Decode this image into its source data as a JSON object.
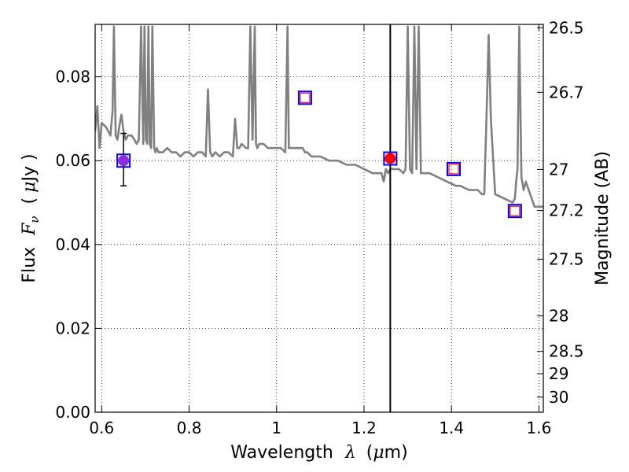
{
  "chart_data": {
    "type": "scatter",
    "xlabel": {
      "pre": "Wavelength",
      "symbol": "λ",
      "unit_open": "(",
      "unit_mu": "μ",
      "unit_rest": "m)"
    },
    "ylabel": {
      "pre": "Flux",
      "symbol": "F",
      "sub": "ν",
      "unit_open": "(",
      "unit_mu": "μ",
      "unit_rest": "Jy )"
    },
    "y2label": "Magnitude (AB)",
    "xlim": [
      0.585,
      1.61
    ],
    "ylim": [
      0.0,
      0.0925
    ],
    "xticks": [
      0.6,
      0.8,
      1.0,
      1.2,
      1.4,
      1.6
    ],
    "xtick_labels": [
      "0.6",
      "0.8",
      "1",
      "1.2",
      "1.4",
      "1.6"
    ],
    "yticks": [
      0.0,
      0.02,
      0.04,
      0.06,
      0.08
    ],
    "ytick_labels": [
      "0.00",
      "0.02",
      "0.04",
      "0.06",
      "0.08"
    ],
    "y2ticks": [
      {
        "label": "26.5",
        "flux": 0.0917
      },
      {
        "label": "26.7",
        "flux": 0.0763
      },
      {
        "label": "27",
        "flux": 0.0579
      },
      {
        "label": "27.2",
        "flux": 0.0481
      },
      {
        "label": "27.5",
        "flux": 0.0365
      },
      {
        "label": "28",
        "flux": 0.023
      },
      {
        "label": "28.5",
        "flux": 0.0145
      },
      {
        "label": "29",
        "flux": 0.0092
      },
      {
        "label": "30",
        "flux": 0.0036
      }
    ],
    "grid": true,
    "vertical_line_x": 1.26,
    "series": [
      {
        "kind": "model_sed_line",
        "color": "#808080",
        "x": [
          0.585,
          0.59,
          0.595,
          0.6,
          0.61,
          0.62,
          0.625,
          0.628,
          0.632,
          0.636,
          0.64,
          0.645,
          0.65,
          0.655,
          0.66,
          0.668,
          0.675,
          0.68,
          0.685,
          0.69,
          0.695,
          0.698,
          0.701,
          0.704,
          0.707,
          0.71,
          0.713,
          0.716,
          0.72,
          0.723,
          0.726,
          0.73,
          0.74,
          0.75,
          0.76,
          0.77,
          0.78,
          0.79,
          0.8,
          0.81,
          0.82,
          0.83,
          0.838,
          0.843,
          0.848,
          0.853,
          0.86,
          0.87,
          0.88,
          0.89,
          0.9,
          0.905,
          0.91,
          0.915,
          0.92,
          0.93,
          0.935,
          0.94,
          0.945,
          0.95,
          0.953,
          0.956,
          0.96,
          0.97,
          0.98,
          0.99,
          1.0,
          1.01,
          1.02,
          1.025,
          1.028,
          1.031,
          1.035,
          1.04,
          1.05,
          1.06,
          1.065,
          1.07,
          1.08,
          1.09,
          1.1,
          1.12,
          1.14,
          1.16,
          1.18,
          1.2,
          1.22,
          1.24,
          1.245,
          1.25,
          1.255,
          1.26,
          1.27,
          1.28,
          1.29,
          1.295,
          1.3,
          1.305,
          1.31,
          1.315,
          1.32,
          1.325,
          1.33,
          1.35,
          1.37,
          1.39,
          1.41,
          1.42,
          1.44,
          1.46,
          1.47,
          1.475,
          1.48,
          1.485,
          1.49,
          1.5,
          1.52,
          1.54,
          1.545,
          1.548,
          1.551,
          1.555,
          1.56,
          1.565,
          1.57,
          1.58,
          1.59,
          1.6,
          1.61
        ],
        "y": [
          0.067,
          0.073,
          0.063,
          0.069,
          0.068,
          0.066,
          0.072,
          0.092,
          0.066,
          0.065,
          0.068,
          0.071,
          0.067,
          0.065,
          0.066,
          0.066,
          0.065,
          0.064,
          0.065,
          0.092,
          0.064,
          0.092,
          0.065,
          0.064,
          0.092,
          0.064,
          0.063,
          0.092,
          0.063,
          0.062,
          0.063,
          0.062,
          0.062,
          0.063,
          0.062,
          0.062,
          0.061,
          0.062,
          0.062,
          0.061,
          0.062,
          0.062,
          0.061,
          0.077,
          0.062,
          0.061,
          0.062,
          0.061,
          0.062,
          0.062,
          0.061,
          0.07,
          0.063,
          0.063,
          0.064,
          0.063,
          0.063,
          0.092,
          0.065,
          0.092,
          0.064,
          0.063,
          0.064,
          0.064,
          0.063,
          0.063,
          0.063,
          0.063,
          0.062,
          0.092,
          0.063,
          0.063,
          0.063,
          0.063,
          0.063,
          0.063,
          0.062,
          0.062,
          0.061,
          0.061,
          0.061,
          0.06,
          0.06,
          0.059,
          0.059,
          0.058,
          0.057,
          0.057,
          0.055,
          0.058,
          0.057,
          0.058,
          0.058,
          0.058,
          0.057,
          0.058,
          0.092,
          0.058,
          0.057,
          0.092,
          0.058,
          0.092,
          0.057,
          0.057,
          0.056,
          0.055,
          0.054,
          0.054,
          0.053,
          0.053,
          0.052,
          0.052,
          0.07,
          0.09,
          0.07,
          0.052,
          0.051,
          0.05,
          0.051,
          0.055,
          0.058,
          0.092,
          0.056,
          0.053,
          0.055,
          0.052,
          0.049,
          0.049,
          0.049
        ],
        "ymax_clip": 0.0925
      },
      {
        "kind": "model_photometry",
        "marker": "open-square",
        "color": "#0000ff",
        "x": [
          0.65,
          1.065,
          1.26,
          1.405,
          1.545
        ],
        "y": [
          0.06,
          0.075,
          0.0605,
          0.058,
          0.048
        ]
      },
      {
        "kind": "model_photometry_inner",
        "marker": "open-square",
        "color": "#ff0000",
        "x": [
          1.065,
          1.405,
          1.545
        ],
        "y": [
          0.075,
          0.058,
          0.048
        ]
      },
      {
        "kind": "observed",
        "marker": "filled-circle",
        "color": "#ff0000",
        "x": [
          1.26
        ],
        "y": [
          0.0605
        ]
      },
      {
        "kind": "observed_with_error",
        "marker": "filled-circle",
        "color": "#8a2be2",
        "x": [
          0.65
        ],
        "y": [
          0.06
        ],
        "yerr_low": [
          0.054
        ],
        "yerr_high": [
          0.0665
        ]
      }
    ]
  }
}
